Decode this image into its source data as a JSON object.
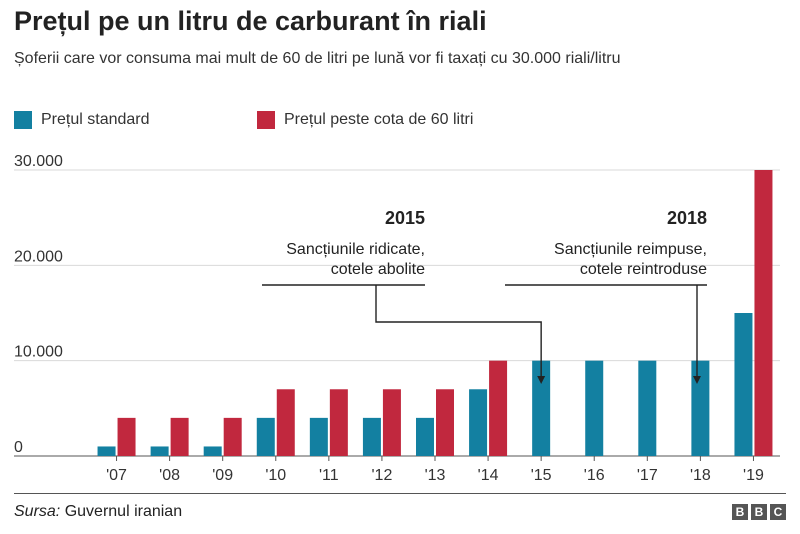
{
  "title": "Prețul pe un litru de carburant în riali",
  "subtitle": "Șoferii care vor consuma mai mult de 60 de litri pe lună vor fi taxați cu 30.000 riali/litru",
  "legend": [
    {
      "label": "Prețul standard",
      "color": "#1380A1"
    },
    {
      "label": "Prețul peste cota de 60 litri",
      "color": "#C1283E"
    }
  ],
  "chart_data": {
    "type": "bar",
    "title": "Prețul pe un litru de carburant în riali",
    "subtitle": "Șoferii care vor consuma mai mult de 60 de litri pe lună vor fi taxați cu 30.000 riali/litru",
    "categories": [
      "'07",
      "'08",
      "'09",
      "'10",
      "'11",
      "'12",
      "'13",
      "'14",
      "'15",
      "'16",
      "'17",
      "'18",
      "'19"
    ],
    "series": [
      {
        "name": "Prețul standard",
        "color": "#1380A1",
        "values": [
          1000,
          1000,
          1000,
          4000,
          4000,
          4000,
          4000,
          7000,
          10000,
          10000,
          10000,
          10000,
          15000
        ]
      },
      {
        "name": "Prețul peste cota de 60 litri",
        "color": "#C1283E",
        "values": [
          4000,
          4000,
          4000,
          7000,
          7000,
          7000,
          7000,
          10000,
          null,
          null,
          null,
          null,
          30000
        ]
      }
    ],
    "ylim": [
      0,
      30000
    ],
    "yticks": [
      0,
      10000,
      20000,
      30000
    ],
    "ytick_labels": [
      "0",
      "10.000",
      "20.000",
      "30.000"
    ],
    "grid": true,
    "legend_position": "top-left",
    "annotations": [
      {
        "year": "2015",
        "text_line1": "Sancțiunile ridicate,",
        "text_line2": "cotele abolite",
        "category": "'15"
      },
      {
        "year": "2018",
        "text_line1": "Sancțiunile reimpuse,",
        "text_line2": "cotele reintroduse",
        "category": "'18"
      }
    ]
  },
  "source": {
    "label": "Sursa:",
    "text": "Guvernul iranian"
  },
  "logo": {
    "letters": [
      "B",
      "B",
      "C"
    ]
  }
}
